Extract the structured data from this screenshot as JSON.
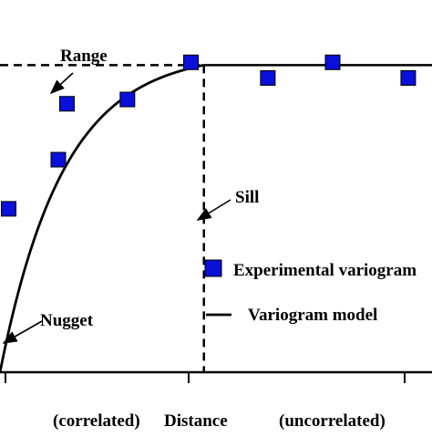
{
  "chart_data": {
    "type": "scatter",
    "title": "",
    "xlabel": "Distance",
    "ylabel": "",
    "xlim": [
      0,
      10
    ],
    "ylim": [
      0,
      1.2
    ],
    "range": 4.72,
    "sill": 1.0,
    "nugget": 0.0,
    "region_labels": {
      "left": "(correlated)",
      "right": "(uncorrelated)"
    },
    "annotations": {
      "range": "Range",
      "sill": "Sill",
      "nugget": "Nugget"
    },
    "legend": {
      "position": "right",
      "items": [
        {
          "label": "Experimental variogram",
          "marker": "square",
          "color": "#0a10d8"
        },
        {
          "label": "Variogram model",
          "marker": "line",
          "color": "#000000"
        }
      ]
    },
    "series": [
      {
        "name": "Experimental variogram",
        "kind": "points",
        "color": "#0a10d8",
        "x": [
          0.2,
          1.35,
          1.55,
          2.95,
          4.42,
          6.2,
          7.7,
          9.45
        ],
        "y": [
          0.532,
          0.692,
          0.874,
          0.888,
          1.009,
          0.958,
          1.009,
          0.958
        ]
      },
      {
        "name": "Variogram model",
        "kind": "curve",
        "color": "#000000",
        "model": "exponential"
      }
    ]
  }
}
